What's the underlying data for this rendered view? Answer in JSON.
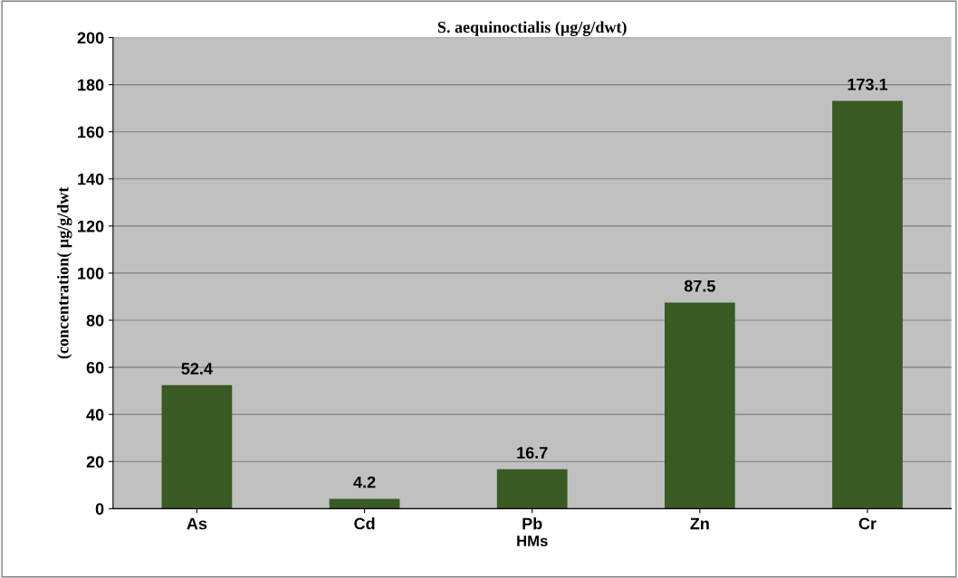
{
  "chart_data": {
    "type": "bar",
    "title": "S. aequinoctialis (µg/g/dwt)",
    "xlabel": "HMs",
    "ylabel": "(concentration( µg/g/dwt",
    "categories": [
      "As",
      "Cd",
      "Pb",
      "Zn",
      "Cr"
    ],
    "values": [
      52.4,
      4.2,
      16.7,
      87.5,
      173.1
    ],
    "color": "#3a5a24",
    "ylim": [
      0,
      200
    ],
    "yticks": [
      0,
      20,
      40,
      60,
      80,
      100,
      120,
      140,
      160,
      180,
      200
    ],
    "grid": "y",
    "data_labels": true
  }
}
